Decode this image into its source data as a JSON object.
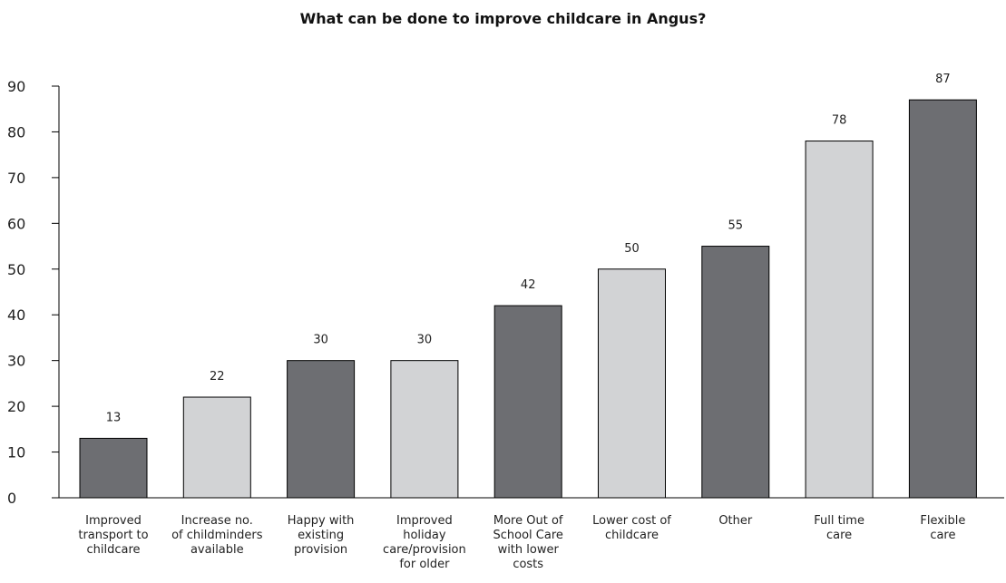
{
  "chart_data": {
    "type": "bar",
    "title": "What can be done to improve childcare in Angus?",
    "xlabel": "",
    "ylabel": "",
    "ylim": [
      0,
      90
    ],
    "yticks": [
      0,
      10,
      20,
      30,
      40,
      50,
      60,
      70,
      80,
      90
    ],
    "grid": false,
    "legend": "none",
    "colors": {
      "dark": "#6d6e72",
      "light": "#d2d3d5",
      "stroke": "#000000"
    },
    "categories": [
      "Improved transport to childcare",
      "Increase no. of childminders available",
      "Happy with existing provision",
      "Improved holiday care/provision for older",
      "More Out of School Care with lower costs",
      "Lower cost of childcare",
      "Other",
      "Full time care",
      "Flexible care"
    ],
    "category_lines": [
      [
        "Improved",
        "transport to",
        "childcare"
      ],
      [
        "Increase no.",
        "of childminders",
        "available"
      ],
      [
        "Happy with",
        "existing",
        "provision"
      ],
      [
        "Improved",
        "holiday",
        "care/provision",
        "for older"
      ],
      [
        "More Out of",
        "School Care",
        "with lower",
        "costs"
      ],
      [
        "Lower cost of",
        "childcare"
      ],
      [
        "Other"
      ],
      [
        "Full time",
        "care"
      ],
      [
        "Flexible",
        "care"
      ]
    ],
    "values": [
      13,
      22,
      30,
      30,
      42,
      50,
      55,
      78,
      87
    ],
    "bar_shades": [
      "dark",
      "light",
      "dark",
      "light",
      "dark",
      "light",
      "dark",
      "light",
      "dark"
    ]
  }
}
